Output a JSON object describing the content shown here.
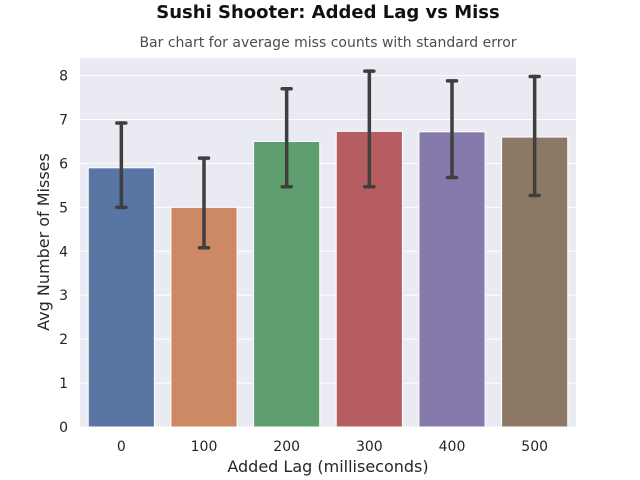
{
  "chart_data": {
    "type": "bar",
    "title": "Sushi Shooter: Added Lag vs Miss",
    "subtitle": "Bar chart for average miss counts with standard error",
    "xlabel": "Added Lag (milliseconds)",
    "ylabel": "Avg Number of Misses",
    "categories": [
      "0",
      "100",
      "200",
      "300",
      "400",
      "500"
    ],
    "values": [
      5.9,
      5.0,
      6.5,
      6.73,
      6.72,
      6.6
    ],
    "error_low": [
      5.0,
      4.08,
      5.47,
      5.47,
      5.68,
      5.27
    ],
    "error_high": [
      6.92,
      6.12,
      7.7,
      8.1,
      7.88,
      7.98
    ],
    "ylim": [
      0,
      8.4
    ],
    "yticks": [
      0,
      1,
      2,
      3,
      4,
      5,
      6,
      7,
      8
    ],
    "grid": true,
    "bar_colors": [
      "#5875a4",
      "#cc8963",
      "#5f9e6e",
      "#b55d60",
      "#857aab",
      "#8d7866"
    ],
    "background_color": "#eaeaf2",
    "errorbar_color": "#3f3f3f"
  }
}
